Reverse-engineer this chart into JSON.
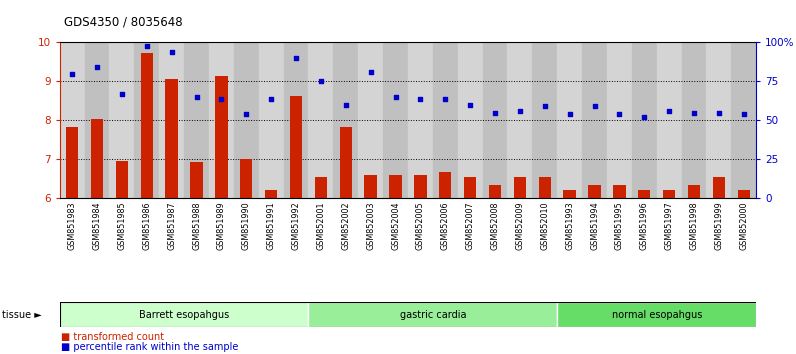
{
  "title": "GDS4350 / 8035648",
  "samples": [
    "GSM851983",
    "GSM851984",
    "GSM851985",
    "GSM851986",
    "GSM851987",
    "GSM851988",
    "GSM851989",
    "GSM851990",
    "GSM851991",
    "GSM851992",
    "GSM852001",
    "GSM852002",
    "GSM852003",
    "GSM852004",
    "GSM852005",
    "GSM852006",
    "GSM852007",
    "GSM852008",
    "GSM852009",
    "GSM852010",
    "GSM851993",
    "GSM851994",
    "GSM851995",
    "GSM851996",
    "GSM851997",
    "GSM851998",
    "GSM851999",
    "GSM852000"
  ],
  "red_bars": [
    7.82,
    8.03,
    6.95,
    9.72,
    9.05,
    6.93,
    9.15,
    7.02,
    6.22,
    8.63,
    6.55,
    7.82,
    6.6,
    6.6,
    6.6,
    6.68,
    6.55,
    6.33,
    6.55,
    6.55,
    6.2,
    6.33,
    6.33,
    6.2,
    6.2,
    6.33,
    6.55,
    6.22
  ],
  "blue_dots": [
    80,
    84,
    67,
    98,
    94,
    65,
    64,
    54,
    64,
    90,
    75,
    60,
    81,
    65,
    64,
    64,
    60,
    55,
    56,
    59,
    54,
    59,
    54,
    52,
    56,
    55,
    55,
    54
  ],
  "groups": [
    {
      "label": "Barrett esopahgus",
      "start": 0,
      "end": 10,
      "color": "#ccffcc"
    },
    {
      "label": "gastric cardia",
      "start": 10,
      "end": 20,
      "color": "#99ee99"
    },
    {
      "label": "normal esopahgus",
      "start": 20,
      "end": 28,
      "color": "#66dd66"
    }
  ],
  "ylim_left": [
    6,
    10
  ],
  "ylim_right": [
    0,
    100
  ],
  "yticks_left": [
    6,
    7,
    8,
    9,
    10
  ],
  "yticks_right_vals": [
    0,
    25,
    50,
    75,
    100
  ],
  "yticks_right_labels": [
    "0",
    "25",
    "50",
    "75",
    "100%"
  ],
  "bar_color": "#cc2200",
  "dot_color": "#0000cc",
  "bar_width": 0.5
}
